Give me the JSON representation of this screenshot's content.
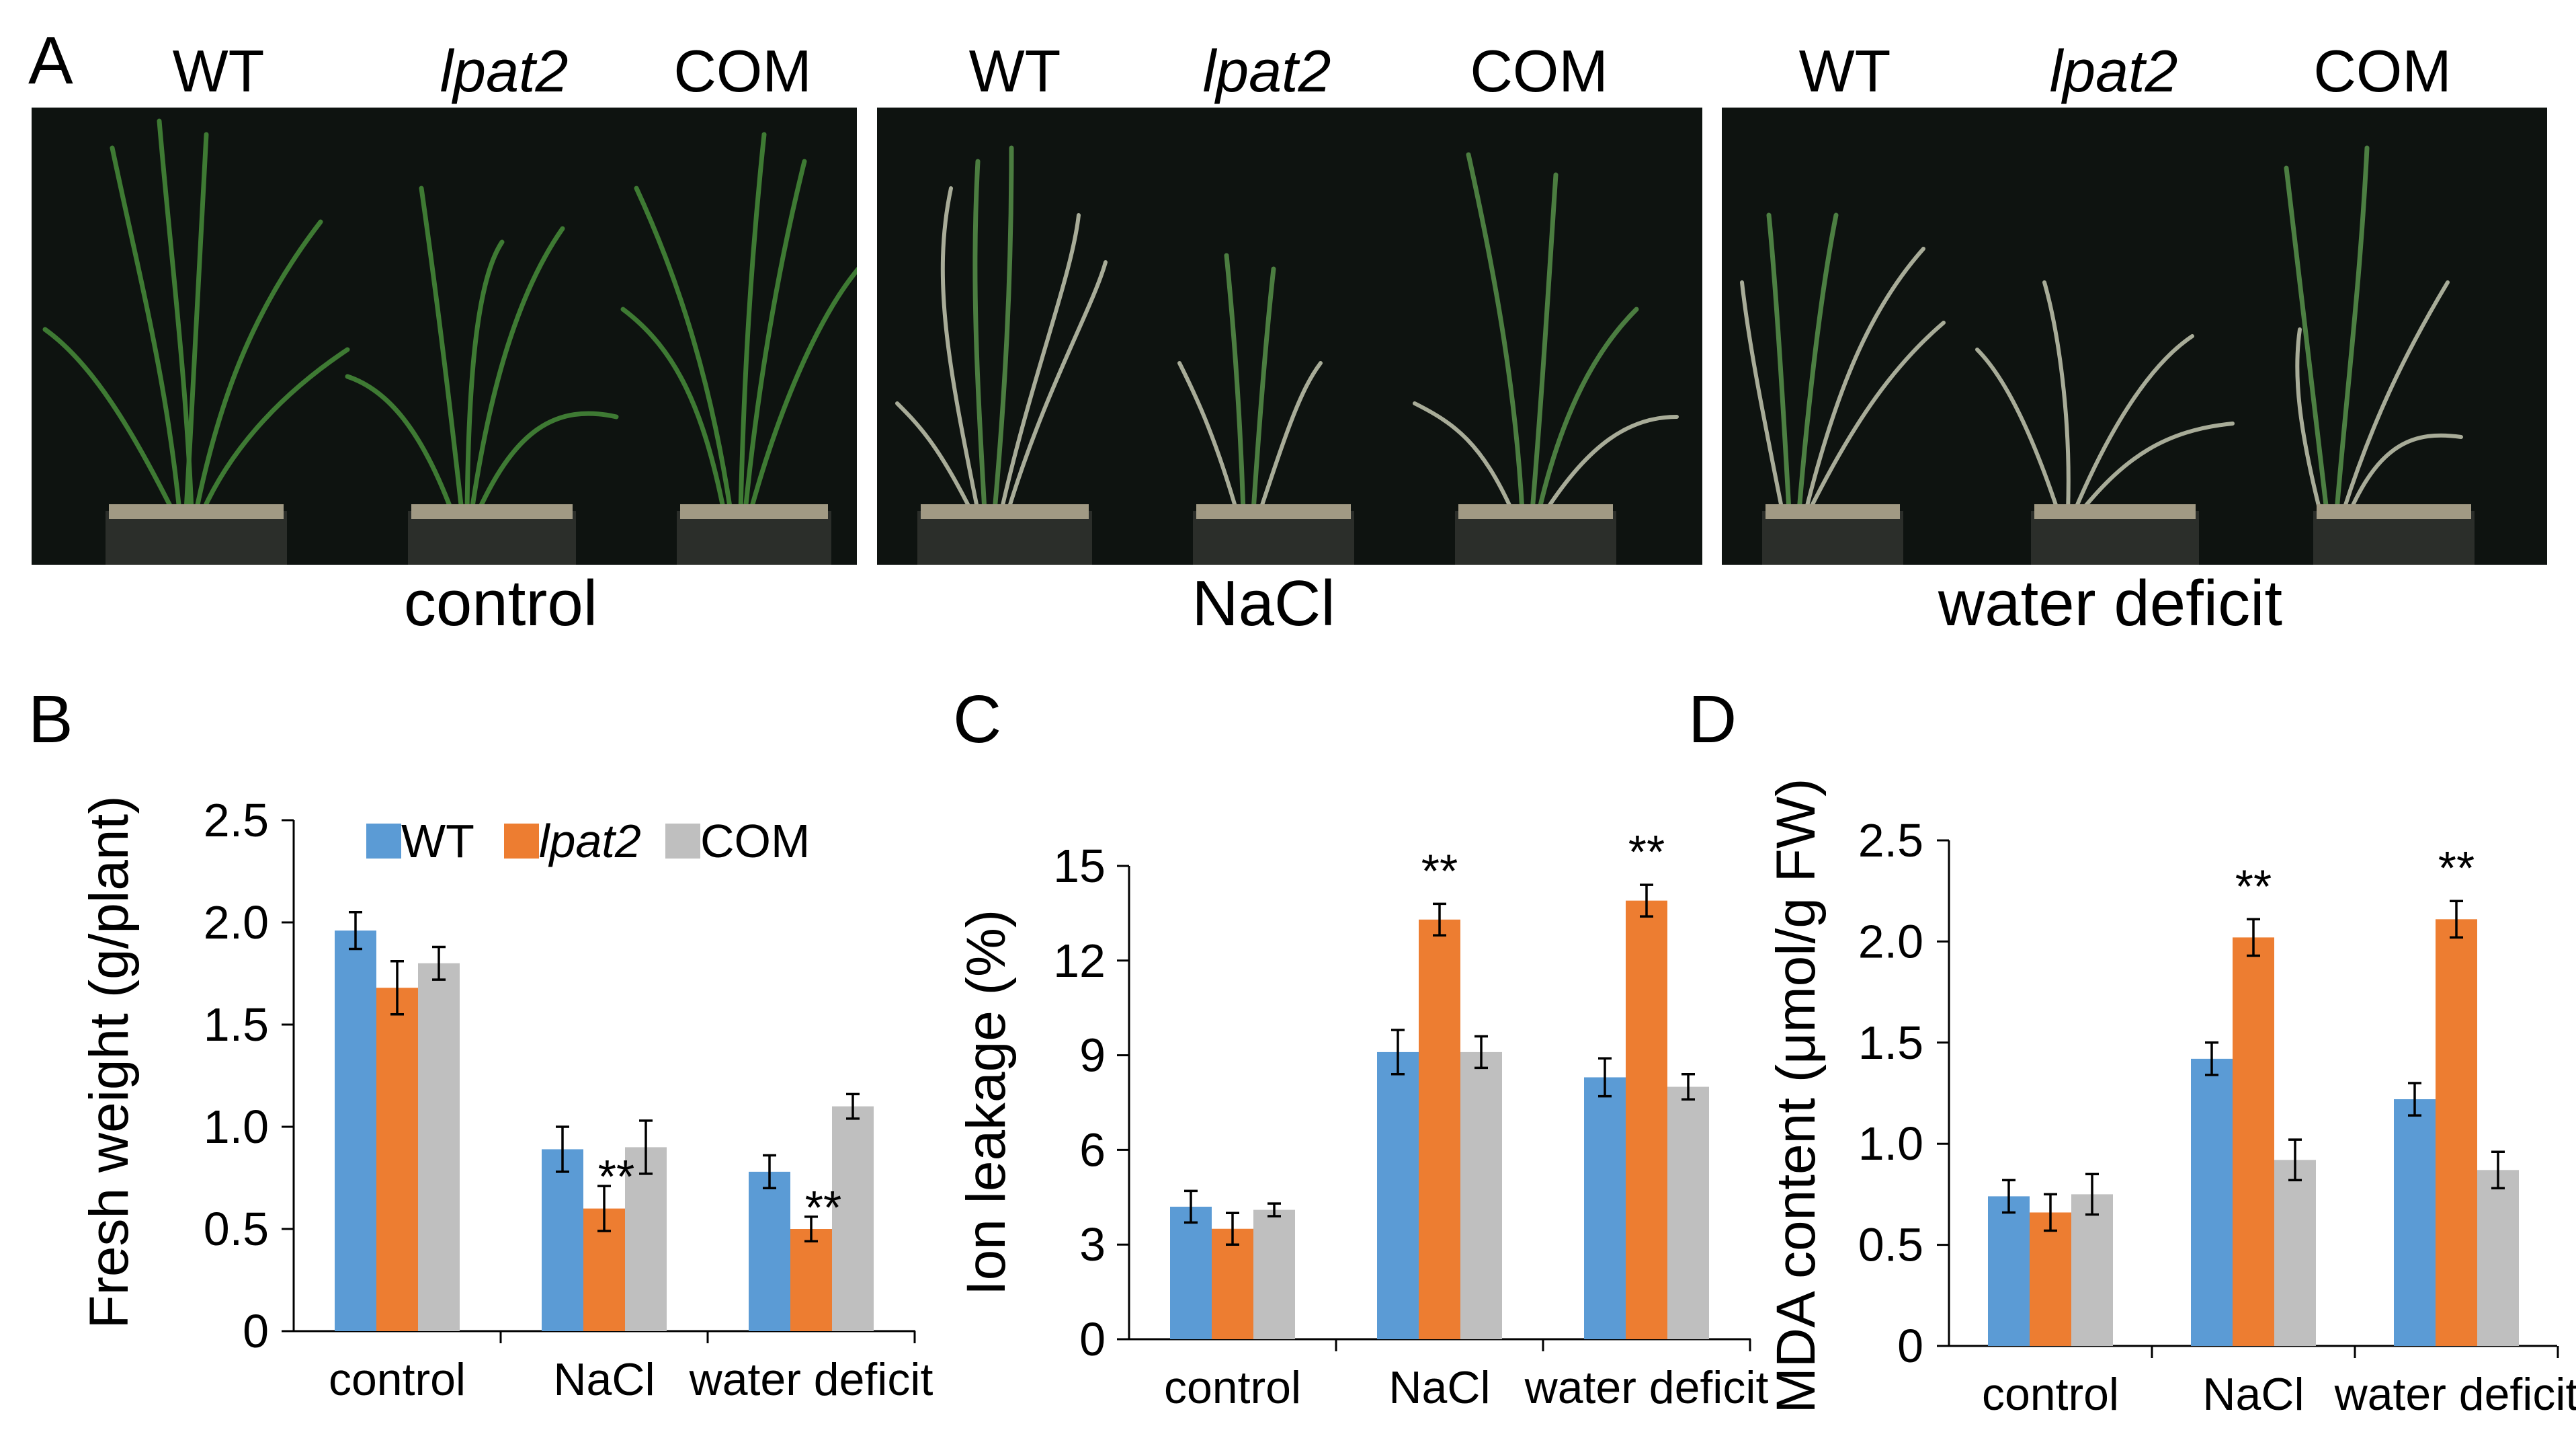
{
  "panels": {
    "a": "A",
    "b": "B",
    "c": "C",
    "d": "D"
  },
  "photos": [
    {
      "genotypes": [
        "WT",
        "lpat2",
        "COM"
      ],
      "condition": "control"
    },
    {
      "genotypes": [
        "WT",
        "lpat2",
        "COM"
      ],
      "condition": "NaCl"
    },
    {
      "genotypes": [
        "WT",
        "lpat2",
        "COM"
      ],
      "condition": "water deficit"
    }
  ],
  "colors": {
    "WT": "#5b9bd5",
    "lpat2": "#ed7d31",
    "COM": "#bfbfbf"
  },
  "chart_data": [
    {
      "id": "B",
      "type": "bar",
      "ylabel": "Fresh weight (g/plant)",
      "categories": [
        "control",
        "NaCl",
        "water deficit"
      ],
      "yticks": [
        "0",
        "0.5",
        "1.0",
        "1.5",
        "2.0",
        "2.5"
      ],
      "ylim": [
        0,
        2.5
      ],
      "legend": {
        "placement": "top",
        "entries": [
          "WT",
          "lpat2",
          "COM"
        ]
      },
      "series": [
        {
          "name": "WT",
          "values": [
            1.96,
            0.89,
            0.78
          ],
          "errors": [
            0.09,
            0.11,
            0.08
          ]
        },
        {
          "name": "lpat2",
          "values": [
            1.68,
            0.6,
            0.5
          ],
          "errors": [
            0.13,
            0.11,
            0.06
          ]
        },
        {
          "name": "COM",
          "values": [
            1.8,
            0.9,
            1.1
          ],
          "errors": [
            0.08,
            0.13,
            0.06
          ]
        }
      ],
      "annotations": [
        {
          "category": "NaCl",
          "series": "lpat2",
          "text": "**"
        },
        {
          "category": "water deficit",
          "series": "lpat2",
          "text": "**"
        }
      ]
    },
    {
      "id": "C",
      "type": "bar",
      "ylabel": "Ion leakage (%)",
      "categories": [
        "control",
        "NaCl",
        "water deficit"
      ],
      "yticks": [
        "0",
        "3",
        "6",
        "9",
        "12",
        "15"
      ],
      "ylim": [
        0,
        15
      ],
      "series": [
        {
          "name": "WT",
          "values": [
            4.2,
            9.1,
            8.3
          ],
          "errors": [
            0.5,
            0.7,
            0.6
          ]
        },
        {
          "name": "lpat2",
          "values": [
            3.5,
            13.3,
            13.9
          ],
          "errors": [
            0.5,
            0.5,
            0.5
          ]
        },
        {
          "name": "COM",
          "values": [
            4.1,
            9.1,
            8.0
          ],
          "errors": [
            0.2,
            0.5,
            0.4
          ]
        }
      ],
      "annotations": [
        {
          "category": "NaCl",
          "series": "lpat2",
          "text": "**"
        },
        {
          "category": "water deficit",
          "series": "lpat2",
          "text": "**"
        }
      ]
    },
    {
      "id": "D",
      "type": "bar",
      "ylabel": "MDA content (μmol/g FW)",
      "categories": [
        "control",
        "NaCl",
        "water deficit"
      ],
      "yticks": [
        "0",
        "0.5",
        "1.0",
        "1.5",
        "2.0",
        "2.5"
      ],
      "ylim": [
        0,
        2.5
      ],
      "series": [
        {
          "name": "WT",
          "values": [
            0.74,
            1.42,
            1.22
          ],
          "errors": [
            0.08,
            0.08,
            0.08
          ]
        },
        {
          "name": "lpat2",
          "values": [
            0.66,
            2.02,
            2.11
          ],
          "errors": [
            0.09,
            0.09,
            0.09
          ]
        },
        {
          "name": "COM",
          "values": [
            0.75,
            0.92,
            0.87
          ],
          "errors": [
            0.1,
            0.1,
            0.09
          ]
        }
      ],
      "annotations": [
        {
          "category": "NaCl",
          "series": "lpat2",
          "text": "**"
        },
        {
          "category": "water deficit",
          "series": "lpat2",
          "text": "**"
        }
      ]
    }
  ]
}
